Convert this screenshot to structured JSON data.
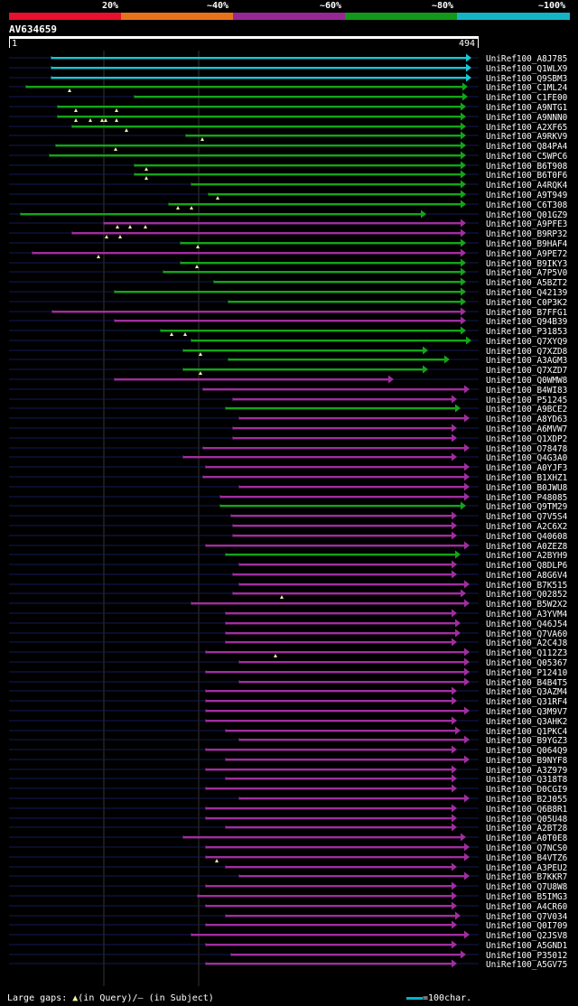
{
  "legend": [
    {
      "label": "20%",
      "color": "#e8102c"
    },
    {
      "label": "~40%",
      "color": "#e8721c"
    },
    {
      "label": "~60%",
      "color": "#952894"
    },
    {
      "label": "~80%",
      "color": "#12991a"
    },
    {
      "label": "~100%",
      "color": "#15b4c5"
    }
  ],
  "query": {
    "id": "AV634659",
    "start": "1",
    "end": "494"
  },
  "colors": {
    "cyan": "#16c6d6",
    "green": "#14a51a",
    "magenta": "#a02ea0",
    "line": "#141a55",
    "tri": "#f0f0a0"
  },
  "hits": [
    {
      "name": "UniRef100_A8J785",
      "color": "cyan",
      "s": 57,
      "e": 522,
      "gaps": []
    },
    {
      "name": "UniRef100_Q1WLX9",
      "color": "cyan",
      "s": 57,
      "e": 522,
      "gaps": []
    },
    {
      "name": "UniRef100_Q9SBM3",
      "color": "cyan",
      "s": 57,
      "e": 522,
      "gaps": []
    },
    {
      "name": "UniRef100_C1ML24",
      "color": "green",
      "s": 29,
      "e": 518,
      "gaps": [
        77
      ]
    },
    {
      "name": "UniRef100_C1FE00",
      "color": "green",
      "s": 149,
      "e": 518,
      "gaps": []
    },
    {
      "name": "UniRef100_A9NTG1",
      "color": "green",
      "s": 64,
      "e": 516,
      "gaps": [
        84,
        129
      ]
    },
    {
      "name": "UniRef100_A9NNN0",
      "color": "green",
      "s": 64,
      "e": 516,
      "gaps": [
        84,
        100,
        113,
        117,
        129
      ]
    },
    {
      "name": "UniRef100_A2XF65",
      "color": "green",
      "s": 80,
      "e": 516,
      "gaps": [
        140
      ]
    },
    {
      "name": "UniRef100_A9RKV9",
      "color": "green",
      "s": 206,
      "e": 516,
      "gaps": [
        224
      ]
    },
    {
      "name": "UniRef100_Q84PA4",
      "color": "green",
      "s": 62,
      "e": 516,
      "gaps": [
        128
      ]
    },
    {
      "name": "UniRef100_C5WPC6",
      "color": "green",
      "s": 55,
      "e": 516,
      "gaps": []
    },
    {
      "name": "UniRef100_B6T908",
      "color": "green",
      "s": 149,
      "e": 516,
      "gaps": [
        162
      ]
    },
    {
      "name": "UniRef100_B6T0F6",
      "color": "green",
      "s": 149,
      "e": 516,
      "gaps": [
        162
      ]
    },
    {
      "name": "UniRef100_A4RQK4",
      "color": "green",
      "s": 212,
      "e": 516,
      "gaps": []
    },
    {
      "name": "UniRef100_A9T949",
      "color": "green",
      "s": 231,
      "e": 516,
      "gaps": [
        241
      ]
    },
    {
      "name": "UniRef100_C6T308",
      "color": "green",
      "s": 187,
      "e": 516,
      "gaps": [
        197,
        212
      ]
    },
    {
      "name": "UniRef100_Q01GZ9",
      "color": "green",
      "s": 23,
      "e": 472,
      "gaps": []
    },
    {
      "name": "UniRef100_A9PFE3",
      "color": "magenta",
      "s": 115,
      "e": 516,
      "gaps": [
        130,
        144,
        161
      ]
    },
    {
      "name": "UniRef100_B9RP32",
      "color": "magenta",
      "s": 80,
      "e": 516,
      "gaps": [
        118,
        133
      ]
    },
    {
      "name": "UniRef100_B9HAF4",
      "color": "green",
      "s": 200,
      "e": 516,
      "gaps": [
        219
      ]
    },
    {
      "name": "UniRef100_A9PE72",
      "color": "magenta",
      "s": 36,
      "e": 516,
      "gaps": [
        109
      ]
    },
    {
      "name": "UniRef100_B9IKY3",
      "color": "green",
      "s": 200,
      "e": 516,
      "gaps": [
        218
      ]
    },
    {
      "name": "UniRef100_A7P5V0",
      "color": "green",
      "s": 181,
      "e": 516,
      "gaps": []
    },
    {
      "name": "UniRef100_A5BZT2",
      "color": "green",
      "s": 237,
      "e": 516,
      "gaps": []
    },
    {
      "name": "UniRef100_Q42139",
      "color": "green",
      "s": 127,
      "e": 516,
      "gaps": []
    },
    {
      "name": "UniRef100_C0P3K2",
      "color": "green",
      "s": 253,
      "e": 516,
      "gaps": []
    },
    {
      "name": "UniRef100_B7FFG1",
      "color": "magenta",
      "s": 58,
      "e": 516,
      "gaps": []
    },
    {
      "name": "UniRef100_Q94B39",
      "color": "magenta",
      "s": 127,
      "e": 516,
      "gaps": []
    },
    {
      "name": "UniRef100_P31853",
      "color": "green",
      "s": 178,
      "e": 516,
      "gaps": [
        190,
        205
      ]
    },
    {
      "name": "UniRef100_Q7XYQ9",
      "color": "green",
      "s": 212,
      "e": 522,
      "gaps": []
    },
    {
      "name": "UniRef100_Q7XZD8",
      "color": "green",
      "s": 203,
      "e": 474,
      "gaps": [
        222
      ]
    },
    {
      "name": "UniRef100_A3AGM3",
      "color": "green",
      "s": 253,
      "e": 498,
      "gaps": []
    },
    {
      "name": "UniRef100_Q7XZD7",
      "color": "green",
      "s": 203,
      "e": 474,
      "gaps": [
        222
      ]
    },
    {
      "name": "UniRef100_Q0WMW8",
      "color": "magenta",
      "s": 127,
      "e": 436,
      "gaps": []
    },
    {
      "name": "UniRef100_B4WI83",
      "color": "magenta",
      "s": 225,
      "e": 520,
      "gaps": []
    },
    {
      "name": "UniRef100_P51245",
      "color": "magenta",
      "s": 258,
      "e": 506,
      "gaps": []
    },
    {
      "name": "UniRef100_A9BCE2",
      "color": "green",
      "s": 250,
      "e": 510,
      "gaps": []
    },
    {
      "name": "UniRef100_A8YD63",
      "color": "magenta",
      "s": 265,
      "e": 520,
      "gaps": []
    },
    {
      "name": "UniRef100_A6MVW7",
      "color": "magenta",
      "s": 258,
      "e": 506,
      "gaps": []
    },
    {
      "name": "UniRef100_Q1XDP2",
      "color": "magenta",
      "s": 258,
      "e": 506,
      "gaps": []
    },
    {
      "name": "UniRef100_O78478",
      "color": "magenta",
      "s": 225,
      "e": 520,
      "gaps": []
    },
    {
      "name": "UniRef100_Q4G3A0",
      "color": "magenta",
      "s": 203,
      "e": 506,
      "gaps": []
    },
    {
      "name": "UniRef100_A0YJF3",
      "color": "magenta",
      "s": 228,
      "e": 520,
      "gaps": []
    },
    {
      "name": "UniRef100_B1XHZ1",
      "color": "magenta",
      "s": 225,
      "e": 520,
      "gaps": []
    },
    {
      "name": "UniRef100_B0JWU8",
      "color": "magenta",
      "s": 265,
      "e": 520,
      "gaps": []
    },
    {
      "name": "UniRef100_P48085",
      "color": "magenta",
      "s": 244,
      "e": 520,
      "gaps": []
    },
    {
      "name": "UniRef100_Q9TM29",
      "color": "green",
      "s": 244,
      "e": 516,
      "gaps": []
    },
    {
      "name": "UniRef100_Q7V5S4",
      "color": "magenta",
      "s": 256,
      "e": 506,
      "gaps": []
    },
    {
      "name": "UniRef100_A2C6X2",
      "color": "magenta",
      "s": 258,
      "e": 506,
      "gaps": []
    },
    {
      "name": "UniRef100_Q40608",
      "color": "magenta",
      "s": 258,
      "e": 506,
      "gaps": []
    },
    {
      "name": "UniRef100_A0ZEZ8",
      "color": "magenta",
      "s": 228,
      "e": 520,
      "gaps": []
    },
    {
      "name": "UniRef100_A2BYH9",
      "color": "green",
      "s": 250,
      "e": 510,
      "gaps": []
    },
    {
      "name": "UniRef100_Q8DLP6",
      "color": "magenta",
      "s": 265,
      "e": 506,
      "gaps": []
    },
    {
      "name": "UniRef100_A8G6V4",
      "color": "magenta",
      "s": 258,
      "e": 506,
      "gaps": []
    },
    {
      "name": "UniRef100_B7K515",
      "color": "magenta",
      "s": 265,
      "e": 520,
      "gaps": []
    },
    {
      "name": "UniRef100_Q02852",
      "color": "magenta",
      "s": 258,
      "e": 516,
      "gaps": [
        312
      ]
    },
    {
      "name": "UniRef100_B5W2X2",
      "color": "magenta",
      "s": 212,
      "e": 520,
      "gaps": []
    },
    {
      "name": "UniRef100_A3YVM4",
      "color": "magenta",
      "s": 250,
      "e": 506,
      "gaps": []
    },
    {
      "name": "UniRef100_Q46J54",
      "color": "magenta",
      "s": 250,
      "e": 510,
      "gaps": []
    },
    {
      "name": "UniRef100_Q7VA60",
      "color": "magenta",
      "s": 250,
      "e": 510,
      "gaps": []
    },
    {
      "name": "UniRef100_A2C4J8",
      "color": "magenta",
      "s": 250,
      "e": 506,
      "gaps": []
    },
    {
      "name": "UniRef100_Q112Z3",
      "color": "magenta",
      "s": 228,
      "e": 520,
      "gaps": [
        305
      ]
    },
    {
      "name": "UniRef100_Q05367",
      "color": "magenta",
      "s": 265,
      "e": 520,
      "gaps": []
    },
    {
      "name": "UniRef100_P12410",
      "color": "magenta",
      "s": 228,
      "e": 520,
      "gaps": []
    },
    {
      "name": "UniRef100_B4B4T5",
      "color": "magenta",
      "s": 265,
      "e": 520,
      "gaps": []
    },
    {
      "name": "UniRef100_Q3AZM4",
      "color": "magenta",
      "s": 228,
      "e": 506,
      "gaps": []
    },
    {
      "name": "UniRef100_Q31RF4",
      "color": "magenta",
      "s": 228,
      "e": 506,
      "gaps": []
    },
    {
      "name": "UniRef100_Q3M9V7",
      "color": "magenta",
      "s": 228,
      "e": 520,
      "gaps": []
    },
    {
      "name": "UniRef100_Q3AHK2",
      "color": "magenta",
      "s": 228,
      "e": 506,
      "gaps": []
    },
    {
      "name": "UniRef100_Q1PKC4",
      "color": "magenta",
      "s": 250,
      "e": 510,
      "gaps": []
    },
    {
      "name": "UniRef100_B9YGZ3",
      "color": "magenta",
      "s": 265,
      "e": 520,
      "gaps": []
    },
    {
      "name": "UniRef100_Q064Q9",
      "color": "magenta",
      "s": 228,
      "e": 506,
      "gaps": []
    },
    {
      "name": "UniRef100_B9NYF8",
      "color": "magenta",
      "s": 250,
      "e": 520,
      "gaps": []
    },
    {
      "name": "UniRef100_A3Z979",
      "color": "magenta",
      "s": 228,
      "e": 506,
      "gaps": []
    },
    {
      "name": "UniRef100_Q318T8",
      "color": "magenta",
      "s": 250,
      "e": 506,
      "gaps": []
    },
    {
      "name": "UniRef100_D0CGI9",
      "color": "magenta",
      "s": 228,
      "e": 506,
      "gaps": []
    },
    {
      "name": "UniRef100_B2J055",
      "color": "magenta",
      "s": 265,
      "e": 520,
      "gaps": []
    },
    {
      "name": "UniRef100_Q6B8R1",
      "color": "magenta",
      "s": 228,
      "e": 506,
      "gaps": []
    },
    {
      "name": "UniRef100_Q05U48",
      "color": "magenta",
      "s": 228,
      "e": 506,
      "gaps": []
    },
    {
      "name": "UniRef100_A2BT28",
      "color": "magenta",
      "s": 250,
      "e": 506,
      "gaps": []
    },
    {
      "name": "UniRef100_A0T0E8",
      "color": "magenta",
      "s": 203,
      "e": 516,
      "gaps": []
    },
    {
      "name": "UniRef100_Q7NCS0",
      "color": "magenta",
      "s": 228,
      "e": 520,
      "gaps": []
    },
    {
      "name": "UniRef100_B4VTZ6",
      "color": "magenta",
      "s": 228,
      "e": 520,
      "gaps": [
        240
      ]
    },
    {
      "name": "UniRef100_A3PEU2",
      "color": "magenta",
      "s": 250,
      "e": 506,
      "gaps": []
    },
    {
      "name": "UniRef100_B7KKR7",
      "color": "magenta",
      "s": 265,
      "e": 520,
      "gaps": []
    },
    {
      "name": "UniRef100_Q7U8W8",
      "color": "magenta",
      "s": 228,
      "e": 506,
      "gaps": []
    },
    {
      "name": "UniRef100_B5IMG3",
      "color": "magenta",
      "s": 219,
      "e": 506,
      "gaps": []
    },
    {
      "name": "UniRef100_A4CR60",
      "color": "magenta",
      "s": 228,
      "e": 506,
      "gaps": []
    },
    {
      "name": "UniRef100_Q7V034",
      "color": "magenta",
      "s": 250,
      "e": 510,
      "gaps": []
    },
    {
      "name": "UniRef100_Q0I709",
      "color": "magenta",
      "s": 228,
      "e": 506,
      "gaps": []
    },
    {
      "name": "UniRef100_Q2JSV8",
      "color": "magenta",
      "s": 212,
      "e": 520,
      "gaps": []
    },
    {
      "name": "UniRef100_A5GND1",
      "color": "magenta",
      "s": 228,
      "e": 506,
      "gaps": []
    },
    {
      "name": "UniRef100_P35012",
      "color": "magenta",
      "s": 256,
      "e": 516,
      "gaps": []
    },
    {
      "name": "UniRef100_A5GV75",
      "color": "magenta",
      "s": 228,
      "e": 506,
      "gaps": []
    }
  ],
  "footer": {
    "gaps_prefix": "Large gaps: ",
    "gaps_query": "(in Query)/",
    "gaps_dash": "—",
    "gaps_subject": " (in Subject)",
    "scale": "=100char."
  }
}
